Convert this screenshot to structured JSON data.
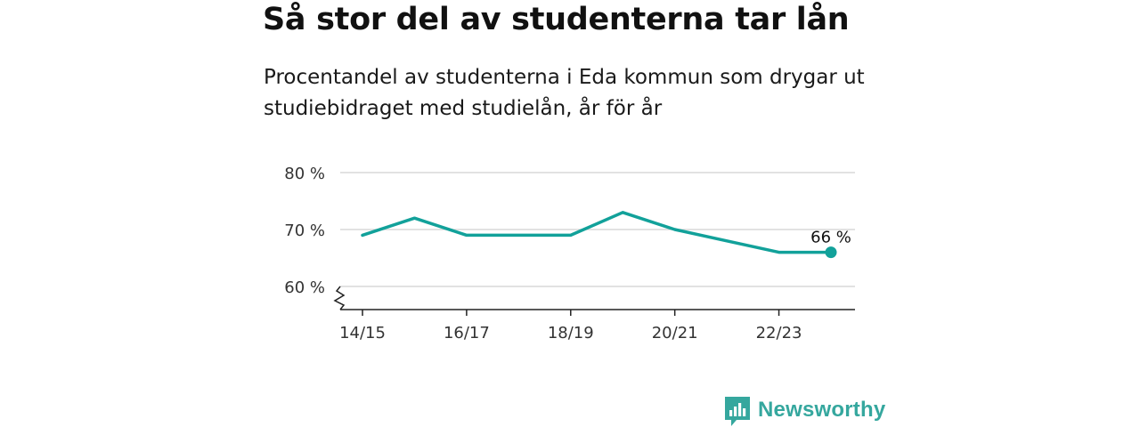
{
  "header": {
    "title": "Så stor del av studenterna tar lån",
    "subtitle": "Procentandel av studenterna i Eda kommun som drygar ut studiebidraget med studielån, år för år"
  },
  "chart_data": {
    "type": "line",
    "x": [
      "14/15",
      "15/16",
      "16/17",
      "17/18",
      "18/19",
      "19/20",
      "20/21",
      "21/22",
      "22/23",
      "23/24"
    ],
    "series": [
      {
        "values": [
          69,
          72,
          69,
          69,
          69,
          73,
          70,
          68,
          66,
          66
        ],
        "color": "#12a19a"
      }
    ],
    "x_tick_labels": [
      "14/15",
      "16/17",
      "18/19",
      "20/21",
      "22/23"
    ],
    "y_ticks": [
      60,
      70,
      80
    ],
    "y_tick_labels": [
      "60 %",
      "70 %",
      "80 %"
    ],
    "ylim": [
      60,
      80
    ],
    "y_axis_broken": true,
    "grid": true,
    "end_label": "66 %",
    "xlabel": "",
    "ylabel": ""
  },
  "brand": {
    "name": "Newsworthy",
    "icon": "newsworthy-logo-icon",
    "color": "#35a79e"
  }
}
